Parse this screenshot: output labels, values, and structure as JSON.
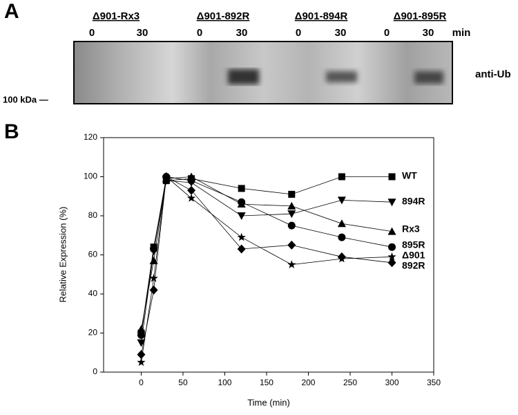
{
  "panel_labels": [
    "A",
    "B"
  ],
  "blot": {
    "groups": [
      {
        "label": "Δ901-Rx3",
        "times": [
          0,
          30
        ]
      },
      {
        "label": "Δ901-892R",
        "times": [
          0,
          30
        ]
      },
      {
        "label": "Δ901-894R",
        "times": [
          0,
          30
        ]
      },
      {
        "label": "Δ901-895R",
        "times": [
          0,
          30
        ]
      }
    ],
    "time_unit": "min",
    "antibody": "anti-Ub",
    "marker": "100 kDa —"
  },
  "chart_data": {
    "type": "line",
    "xlabel": "Time (min)",
    "ylabel": "Relative Expression (%)",
    "x": [
      0,
      15,
      30,
      60,
      120,
      180,
      240,
      300
    ],
    "xlim": [
      -45,
      350
    ],
    "xticks": [
      0,
      50,
      100,
      150,
      200,
      250,
      300,
      350
    ],
    "ylim": [
      0,
      120
    ],
    "yticks": [
      0,
      20,
      40,
      60,
      80,
      100,
      120
    ],
    "grid": false,
    "series": [
      {
        "name": "WT",
        "marker": "square",
        "color": "#000000",
        "values": [
          20,
          64,
          98,
          99,
          94,
          91,
          100,
          100
        ]
      },
      {
        "name": "894R",
        "marker": "triangle-down",
        "color": "#000000",
        "values": [
          15,
          62,
          98,
          97,
          80,
          81,
          88,
          87
        ]
      },
      {
        "name": "Rx3",
        "marker": "triangle-up",
        "color": "#000000",
        "values": [
          22,
          57,
          99,
          100,
          86,
          85,
          76,
          72
        ]
      },
      {
        "name": "895R",
        "marker": "circle",
        "color": "#000000",
        "values": [
          19,
          63,
          100,
          98,
          87,
          75,
          69,
          64
        ]
      },
      {
        "name": "Δ901",
        "marker": "star",
        "color": "#000000",
        "values": [
          5,
          48,
          100,
          89,
          69,
          55,
          58,
          59
        ]
      },
      {
        "name": "892R",
        "marker": "diamond",
        "color": "#000000",
        "values": [
          9,
          42,
          100,
          93,
          63,
          65,
          59,
          56
        ]
      }
    ]
  }
}
